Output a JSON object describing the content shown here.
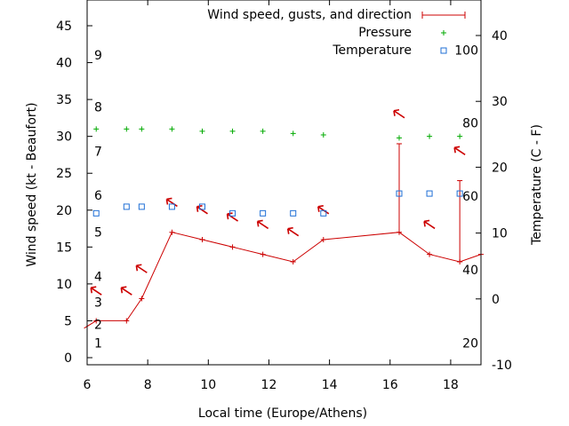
{
  "chart_data": {
    "type": "line",
    "xlabel": "Local time (Europe/Athens)",
    "ylabel_left": "Wind speed (kt - Beaufort)",
    "ylabel_right": "Temperature (C - F)",
    "xlim": [
      6,
      19
    ],
    "ylim_left": [
      0,
      48
    ],
    "ylim_right": [
      -10,
      45
    ],
    "x_ticks": [
      "6",
      "8",
      "10",
      "12",
      "14",
      "16",
      "18"
    ],
    "y_left_ticks": [
      "0",
      "5",
      "10",
      "15",
      "20",
      "25",
      "30",
      "35",
      "40",
      "45"
    ],
    "y_right_ticks": [
      "-10",
      "0",
      "10",
      "20",
      "30",
      "40"
    ],
    "beaufort_scale": [
      {
        "label": "1",
        "kt": 2
      },
      {
        "label": "2",
        "kt": 4.5
      },
      {
        "label": "3",
        "kt": 7.5
      },
      {
        "label": "4",
        "kt": 11
      },
      {
        "label": "5",
        "kt": 17
      },
      {
        "label": "6",
        "kt": 22
      },
      {
        "label": "7",
        "kt": 28
      },
      {
        "label": "8",
        "kt": 34
      },
      {
        "label": "9",
        "kt": 41
      }
    ],
    "fahrenheit_scale": [
      {
        "label": "20",
        "c": -6.7
      },
      {
        "label": "40",
        "c": 4.4
      },
      {
        "label": "60",
        "c": 15.6
      },
      {
        "label": "80",
        "c": 26.7
      },
      {
        "label": "100",
        "c": 37.8
      }
    ],
    "legend": {
      "position": "top-right",
      "wind": "Wind speed, gusts, and direction",
      "pressure": "Pressure",
      "temperature": "Temperature"
    },
    "wind_speed": {
      "x": [
        5.9,
        6.3,
        7.3,
        7.8,
        8.8,
        9.8,
        10.8,
        11.8,
        12.8,
        13.8,
        16.3,
        17.3,
        18.3,
        19
      ],
      "y": [
        4,
        5,
        5,
        8,
        17,
        16,
        15,
        14,
        13,
        16,
        17,
        14,
        13,
        14
      ]
    },
    "gusts": [
      {
        "x": 16.3,
        "low": 17,
        "high": 29
      },
      {
        "x": 18.3,
        "low": 13,
        "high": 24
      }
    ],
    "direction_arrows": {
      "x": [
        6.3,
        7.3,
        7.8,
        8.8,
        9.8,
        10.8,
        11.8,
        12.8,
        13.8,
        16.3,
        17.3,
        18.3
      ],
      "y": [
        9,
        9,
        12,
        21,
        20,
        19,
        18,
        17,
        20,
        33,
        18,
        28
      ]
    },
    "pressure": {
      "x": [
        6.3,
        7.3,
        7.8,
        8.8,
        9.8,
        10.8,
        11.8,
        12.8,
        13.8,
        16.3,
        17.3,
        18.3
      ],
      "y": [
        31,
        31,
        31,
        31,
        30.7,
        30.7,
        30.7,
        30.4,
        30.2,
        29.8,
        30,
        30
      ]
    },
    "temperature": {
      "x": [
        6.3,
        7.3,
        7.8,
        8.8,
        9.8,
        10.8,
        11.8,
        12.8,
        13.8,
        16.3,
        17.3,
        18.3
      ],
      "y": [
        13,
        14,
        14,
        14,
        14,
        13,
        13,
        13,
        13,
        16,
        16,
        16
      ]
    },
    "colors": {
      "wind": "#cc0000",
      "pressure": "#00aa00",
      "temperature": "#1f6fd6",
      "axes": "#000000"
    }
  }
}
